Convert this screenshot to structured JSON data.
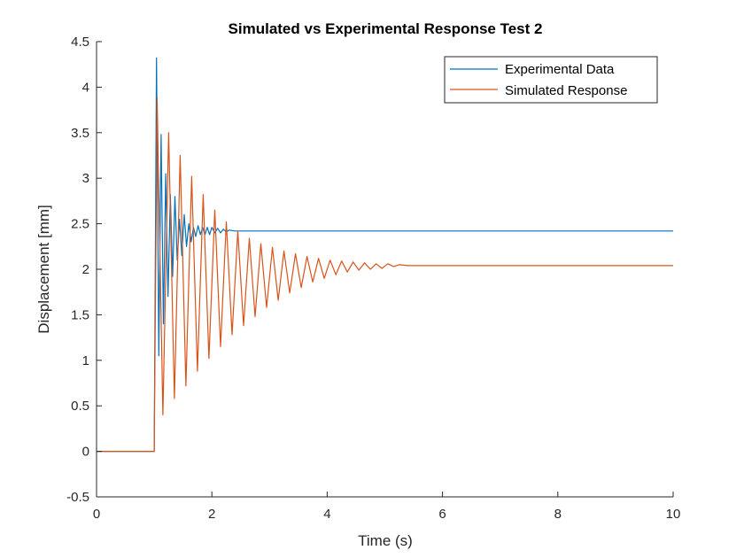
{
  "chart_data": {
    "type": "line",
    "title": "Simulated vs Experimental Response Test 2",
    "xlabel": "Time (s)",
    "ylabel": "Displacement [mm]",
    "xlim": [
      0,
      10
    ],
    "ylim": [
      -0.5,
      4.5
    ],
    "xticks": [
      0,
      2,
      4,
      6,
      8,
      10
    ],
    "yticks": [
      -0.5,
      0,
      0.5,
      1,
      1.5,
      2,
      2.5,
      3,
      3.5,
      4,
      4.5
    ],
    "xtick_labels": [
      "0",
      "2",
      "4",
      "6",
      "8",
      "10"
    ],
    "ytick_labels": [
      "-0.5",
      "0",
      "0.5",
      "1",
      "1.5",
      "2",
      "2.5",
      "3",
      "3.5",
      "4",
      "4.5"
    ],
    "grid": false,
    "legend_position": "top-right",
    "series": [
      {
        "name": "Experimental Data",
        "color": "#0072BD",
        "x": [
          0,
          1.0,
          1.04,
          1.08,
          1.12,
          1.16,
          1.2,
          1.24,
          1.28,
          1.32,
          1.36,
          1.4,
          1.44,
          1.48,
          1.52,
          1.56,
          1.6,
          1.64,
          1.68,
          1.72,
          1.76,
          1.8,
          1.84,
          1.88,
          1.92,
          1.96,
          2.0,
          2.05,
          2.1,
          2.15,
          2.2,
          2.25,
          2.3,
          2.4,
          2.6,
          3.0,
          10
        ],
        "y": [
          0,
          0,
          4.32,
          1.05,
          3.48,
          1.4,
          3.05,
          1.7,
          2.82,
          1.92,
          2.8,
          2.1,
          2.55,
          2.15,
          2.6,
          2.25,
          2.5,
          2.3,
          2.46,
          2.36,
          2.48,
          2.38,
          2.46,
          2.38,
          2.46,
          2.38,
          2.46,
          2.4,
          2.45,
          2.4,
          2.44,
          2.41,
          2.43,
          2.42,
          2.42,
          2.42,
          2.42
        ]
      },
      {
        "name": "Simulated Response",
        "color": "#D95319",
        "x": [
          0,
          1.0,
          1.05,
          1.15,
          1.25,
          1.35,
          1.45,
          1.55,
          1.65,
          1.75,
          1.85,
          1.95,
          2.05,
          2.15,
          2.25,
          2.35,
          2.45,
          2.55,
          2.65,
          2.75,
          2.85,
          2.95,
          3.05,
          3.15,
          3.25,
          3.35,
          3.45,
          3.55,
          3.65,
          3.75,
          3.85,
          3.95,
          4.05,
          4.15,
          4.25,
          4.35,
          4.45,
          4.55,
          4.65,
          4.75,
          4.85,
          4.95,
          5.05,
          5.15,
          5.25,
          5.4,
          6.0,
          10
        ],
        "y": [
          0,
          0,
          3.88,
          0.4,
          3.5,
          0.58,
          3.25,
          0.72,
          3.02,
          0.88,
          2.82,
          1.02,
          2.65,
          1.15,
          2.52,
          1.28,
          2.42,
          1.38,
          2.34,
          1.48,
          2.28,
          1.58,
          2.24,
          1.66,
          2.2,
          1.74,
          2.17,
          1.8,
          2.14,
          1.86,
          2.12,
          1.9,
          2.1,
          1.94,
          2.09,
          1.97,
          2.08,
          1.99,
          2.07,
          2.0,
          2.06,
          2.01,
          2.06,
          2.03,
          2.05,
          2.04,
          2.04,
          2.04
        ]
      }
    ]
  }
}
